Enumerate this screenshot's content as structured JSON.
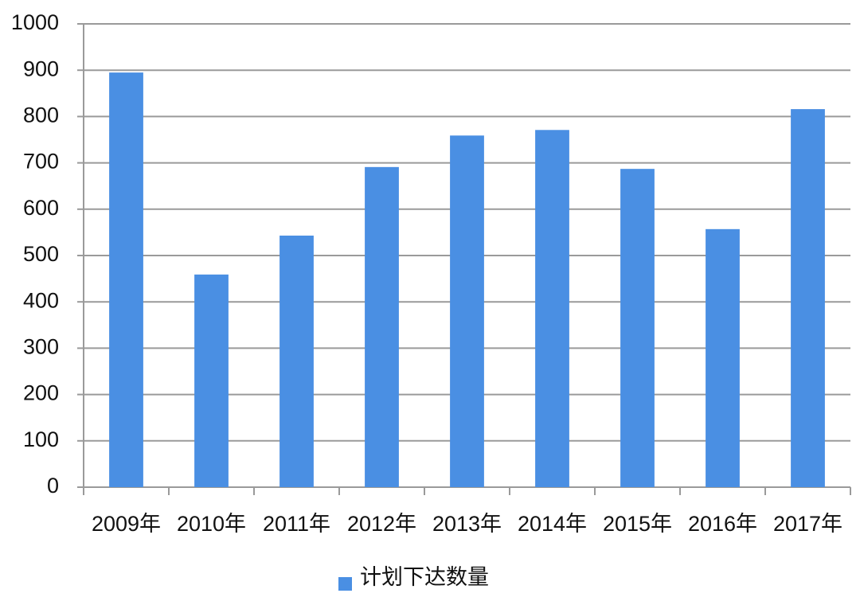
{
  "chart_data": {
    "type": "bar",
    "categories": [
      "2009年",
      "2010年",
      "2011年",
      "2012年",
      "2013年",
      "2014年",
      "2015年",
      "2016年",
      "2017年"
    ],
    "series": [
      {
        "name": "计划下达数量",
        "color": "#4a8fe3",
        "values": [
          895,
          459,
          543,
          691,
          759,
          771,
          687,
          557,
          816
        ]
      }
    ],
    "ylim": [
      0,
      1000
    ],
    "yticks": [
      0,
      100,
      200,
      300,
      400,
      500,
      600,
      700,
      800,
      900,
      1000
    ],
    "grid": true,
    "legend": "bottom"
  }
}
